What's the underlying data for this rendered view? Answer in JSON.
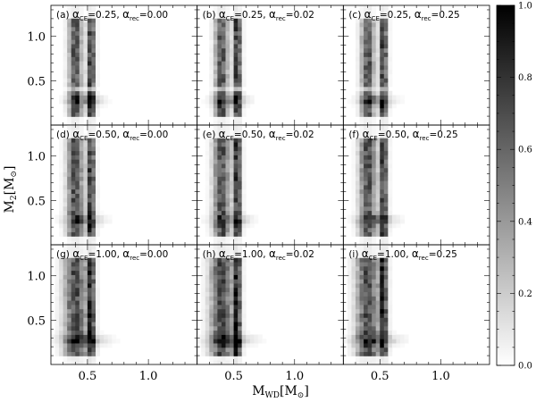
{
  "chart_data": {
    "type": "heatmap",
    "xlabel": "M",
    "xlabel_sub": "WD",
    "xlabel_unit": "[M",
    "xlabel_unit_close": "]",
    "ylabel": "M",
    "ylabel_sub": "2",
    "ylabel_unit": "[M",
    "ylabel_unit_close": "]",
    "sun_symbol": "⊙",
    "x_ticks": [
      0.5,
      1.0
    ],
    "x_tick_labels": [
      "0.5",
      "1.0"
    ],
    "y_ticks": [
      0.5,
      1.0
    ],
    "y_tick_labels": [
      "0.5",
      "1.0"
    ],
    "xlim": [
      0.2,
      1.4
    ],
    "ylim": [
      0.0,
      1.35
    ],
    "colorbar": {
      "range": [
        0.0,
        1.0
      ],
      "ticks": [
        0.0,
        0.2,
        0.4,
        0.6,
        0.8,
        1.0
      ],
      "tick_labels": [
        "0.0",
        "0.2",
        "0.4",
        "0.6",
        "0.8",
        "1.0"
      ],
      "colormap": "white-to-black"
    },
    "alpha_symbol": "α",
    "alpha_ce_sub": "CE",
    "alpha_rec_sub": "rec",
    "panels": [
      {
        "tag": "(a)",
        "alpha_ce": "0.25",
        "alpha_rec": "0.00"
      },
      {
        "tag": "(b)",
        "alpha_ce": "0.25",
        "alpha_rec": "0.02"
      },
      {
        "tag": "(c)",
        "alpha_ce": "0.25",
        "alpha_rec": "0.25"
      },
      {
        "tag": "(d)",
        "alpha_ce": "0.50",
        "alpha_rec": "0.00"
      },
      {
        "tag": "(e)",
        "alpha_ce": "0.50",
        "alpha_rec": "0.02"
      },
      {
        "tag": "(f)",
        "alpha_ce": "0.50",
        "alpha_rec": "0.25"
      },
      {
        "tag": "(g)",
        "alpha_ce": "1.00",
        "alpha_rec": "0.00"
      },
      {
        "tag": "(h)",
        "alpha_ce": "1.00",
        "alpha_rec": "0.02"
      },
      {
        "tag": "(i)",
        "alpha_ce": "1.00",
        "alpha_rec": "0.25"
      }
    ],
    "grid": false,
    "legend": "none"
  }
}
